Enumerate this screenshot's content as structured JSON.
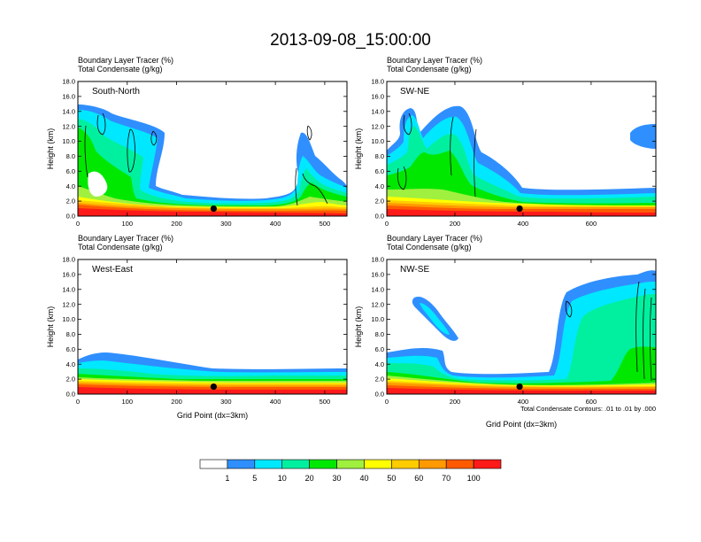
{
  "title": "2013-09-08_15:00:00",
  "colors": {
    "scale": [
      "#ffffff",
      "#2f8fff",
      "#00e8ff",
      "#00f0a0",
      "#00e800",
      "#a0f040",
      "#ffff00",
      "#ffcc00",
      "#ff9900",
      "#ff5a00",
      "#ff1a1a"
    ],
    "contour": "#000000",
    "marker": "#000000"
  },
  "colorbar": {
    "labels": [
      "1",
      "5",
      "10",
      "20",
      "30",
      "40",
      "50",
      "60",
      "70",
      "100"
    ]
  },
  "chart_data": [
    {
      "type": "heatmap",
      "panel_name": "South-North",
      "header": [
        "Boundary Layer Tracer   (%)",
        "Total Condensate   (g/kg)"
      ],
      "xlabel": "",
      "ylabel": "Height (km)",
      "xlim": [
        0,
        545
      ],
      "ylim": [
        0,
        18
      ],
      "xticks": [
        0,
        100,
        200,
        300,
        400,
        500
      ],
      "yticks": [
        "0.0",
        "2.0",
        "4.0",
        "6.0",
        "8.0",
        "10.0",
        "12.0",
        "14.0",
        "16.0",
        "18.0"
      ],
      "marker": [
        275,
        1.0
      ],
      "note": ""
    },
    {
      "type": "heatmap",
      "panel_name": "SW-NE",
      "header": [
        "Boundary Layer Tracer   (%)",
        "Total Condensate   (g/kg)"
      ],
      "xlabel": "",
      "ylabel": "Height (km)",
      "xlim": [
        0,
        790
      ],
      "ylim": [
        0,
        18
      ],
      "xticks": [
        0,
        200,
        400,
        600
      ],
      "yticks": [
        "0.0",
        "2.0",
        "4.0",
        "6.0",
        "8.0",
        "10.0",
        "12.0",
        "14.0",
        "16.0",
        "18.0"
      ],
      "marker": [
        390,
        1.0
      ],
      "note": ""
    },
    {
      "type": "heatmap",
      "panel_name": "West-East",
      "header": [
        "Boundary Layer Tracer   (%)",
        "Total Condensate   (g/kg)"
      ],
      "xlabel": "Grid Point (dx=3km)",
      "ylabel": "Height (km)",
      "xlim": [
        0,
        545
      ],
      "ylim": [
        0,
        18
      ],
      "xticks": [
        0,
        100,
        200,
        300,
        400,
        500
      ],
      "yticks": [
        "0.0",
        "2.0",
        "4.0",
        "6.0",
        "8.0",
        "10.0",
        "12.0",
        "14.0",
        "16.0",
        "18.0"
      ],
      "marker": [
        275,
        1.0
      ],
      "note": ""
    },
    {
      "type": "heatmap",
      "panel_name": "NW-SE",
      "header": [
        "Boundary Layer Tracer   (%)",
        "Total Condensate   (g/kg)"
      ],
      "xlabel": "Grid Point (dx=3km)",
      "ylabel": "Height (km)",
      "xlim": [
        0,
        790
      ],
      "ylim": [
        0,
        18
      ],
      "xticks": [
        0,
        200,
        400,
        600
      ],
      "yticks": [
        "0.0",
        "2.0",
        "4.0",
        "6.0",
        "8.0",
        "10.0",
        "12.0",
        "14.0",
        "16.0",
        "18.0"
      ],
      "marker": [
        390,
        1.0
      ],
      "note": "Total Condensate Contours: .01 to .01 by .000"
    }
  ]
}
